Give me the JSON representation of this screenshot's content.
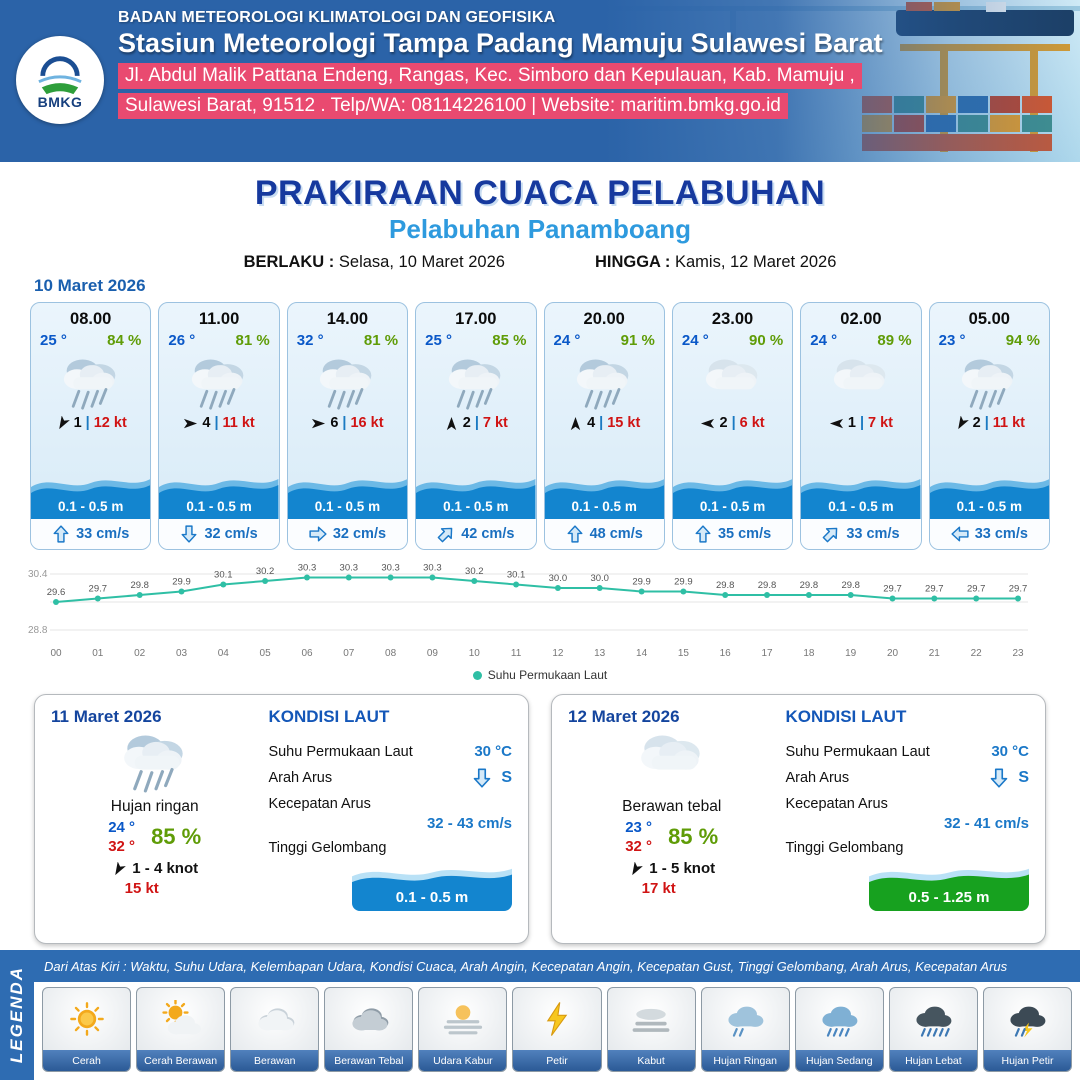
{
  "header": {
    "org": "BADAN METEOROLOGI KLIMATOLOGI DAN GEOFISIKA",
    "station": "Stasiun Meteorologi Tampa Padang Mamuju Sulawesi Barat",
    "address1": "Jl. Abdul Malik Pattana Endeng, Rangas, Kec. Simboro dan Kepulauan, Kab. Mamuju ,",
    "address2": "Sulawesi Barat, 91512 . Telp/WA: 08114226100 | Website: maritim.bmkg.go.id",
    "logo_label": "BMKG"
  },
  "title": {
    "main": "PRAKIRAAN CUACA PELABUHAN",
    "sub": "Pelabuhan Panamboang",
    "berlaku_label": "BERLAKU :",
    "berlaku_value": "Selasa, 10 Maret 2026",
    "hingga_label": "HINGGA :",
    "hingga_value": "Kamis, 12 Maret 2026"
  },
  "forecast": {
    "date": "10 Maret 2026",
    "cards": [
      {
        "time": "08.00",
        "temp": "25 °",
        "hum": "84 %",
        "icon": "rain",
        "wind_deg": 120,
        "wind_num": "1",
        "wind_speed": "12 kt",
        "wave": "0.1 - 0.5 m",
        "cur_deg": 0,
        "cur_speed": "33 cm/s"
      },
      {
        "time": "11.00",
        "temp": "26 °",
        "hum": "81 %",
        "icon": "rain",
        "wind_deg": 0,
        "wind_num": "4",
        "wind_speed": "11 kt",
        "wave": "0.1 - 0.5 m",
        "cur_deg": 180,
        "cur_speed": "32 cm/s"
      },
      {
        "time": "14.00",
        "temp": "32 °",
        "hum": "81 %",
        "icon": "rain",
        "wind_deg": 0,
        "wind_num": "6",
        "wind_speed": "16 kt",
        "wave": "0.1 - 0.5 m",
        "cur_deg": 90,
        "cur_speed": "32 cm/s"
      },
      {
        "time": "17.00",
        "temp": "25 °",
        "hum": "85 %",
        "icon": "rain",
        "wind_deg": -90,
        "wind_num": "2",
        "wind_speed": "7 kt",
        "wave": "0.1 - 0.5 m",
        "cur_deg": 45,
        "cur_speed": "42 cm/s"
      },
      {
        "time": "20.00",
        "temp": "24 °",
        "hum": "91 %",
        "icon": "rain",
        "wind_deg": -90,
        "wind_num": "4",
        "wind_speed": "15 kt",
        "wave": "0.1 - 0.5 m",
        "cur_deg": 0,
        "cur_speed": "48 cm/s"
      },
      {
        "time": "23.00",
        "temp": "24 °",
        "hum": "90 %",
        "icon": "cloud",
        "wind_deg": 180,
        "wind_num": "2",
        "wind_speed": "6 kt",
        "wave": "0.1 - 0.5 m",
        "cur_deg": 0,
        "cur_speed": "35 cm/s"
      },
      {
        "time": "02.00",
        "temp": "24 °",
        "hum": "89 %",
        "icon": "cloud",
        "wind_deg": 180,
        "wind_num": "1",
        "wind_speed": "7 kt",
        "wave": "0.1 - 0.5 m",
        "cur_deg": 45,
        "cur_speed": "33 cm/s"
      },
      {
        "time": "05.00",
        "temp": "23 °",
        "hum": "94 %",
        "icon": "rain",
        "wind_deg": 120,
        "wind_num": "2",
        "wind_speed": "11 kt",
        "wave": "0.1 - 0.5 m",
        "cur_deg": 270,
        "cur_speed": "33 cm/s"
      }
    ]
  },
  "chart_data": {
    "type": "line",
    "series_name": "Suhu Permukaan Laut",
    "x": [
      "00",
      "01",
      "02",
      "03",
      "04",
      "05",
      "06",
      "07",
      "08",
      "09",
      "10",
      "11",
      "12",
      "13",
      "14",
      "15",
      "16",
      "17",
      "18",
      "19",
      "20",
      "21",
      "22",
      "23"
    ],
    "values": [
      29.6,
      29.7,
      29.8,
      29.9,
      30.1,
      30.2,
      30.3,
      30.3,
      30.3,
      30.3,
      30.2,
      30.1,
      30.0,
      30.0,
      29.9,
      29.9,
      29.8,
      29.8,
      29.8,
      29.8,
      29.7,
      29.7,
      29.7,
      29.7
    ],
    "ylim": [
      28.8,
      30.4
    ],
    "line_color": "#2fbfa5",
    "grid": true,
    "legend_position": "bottom"
  },
  "days": [
    {
      "date": "11 Maret 2026",
      "condition": "Hujan ringan",
      "icon": "rain",
      "temp_min": "24 °",
      "temp_max": "32 °",
      "humidity": "85 %",
      "wind_deg": 120,
      "wind_range": "1  - 4 knot",
      "gust": "15 kt",
      "sea": {
        "heading": "KONDISI LAUT",
        "sst_label": "Suhu Permukaan Laut",
        "sst": "30 °C",
        "current_dir_label": "Arah Arus",
        "current_dir": "S",
        "current_dir_deg": 180,
        "current_speed_label": "Kecepatan Arus",
        "current_speed": "32  - 43 cm/s",
        "wave_label": "Tinggi Gelombang",
        "wave": "0.1 - 0.5 m",
        "wave_color": "#1385cf"
      }
    },
    {
      "date": "12 Maret 2026",
      "condition": "Berawan tebal",
      "icon": "cloud",
      "temp_min": "23 °",
      "temp_max": "32 °",
      "humidity": "85 %",
      "wind_deg": 120,
      "wind_range": "1  - 5 knot",
      "gust": "17 kt",
      "sea": {
        "heading": "KONDISI LAUT",
        "sst_label": "Suhu Permukaan Laut",
        "sst": "30 °C",
        "current_dir_label": "Arah Arus",
        "current_dir": "S",
        "current_dir_deg": 180,
        "current_speed_label": "Kecepatan Arus",
        "current_speed": "32  - 41 cm/s",
        "wave_label": "Tinggi Gelombang",
        "wave": "0.5 - 1.25 m",
        "wave_color": "#17a11f"
      }
    }
  ],
  "legend": {
    "title": "LEGENDA",
    "caption": "Dari Atas Kiri : Waktu, Suhu Udara, Kelembapan Udara, Kondisi Cuaca, Arah Angin, Kecepatan Angin, Kecepatan Gust, Tinggi Gelombang, Arah Arus, Kecepatan Arus",
    "items": [
      {
        "label": "Cerah",
        "icon": "sun"
      },
      {
        "label": "Cerah Berawan",
        "icon": "sun-cloud"
      },
      {
        "label": "Berawan",
        "icon": "cloud"
      },
      {
        "label": "Berawan Tebal",
        "icon": "cloud-thick"
      },
      {
        "label": "Udara Kabur",
        "icon": "haze"
      },
      {
        "label": "Petir",
        "icon": "lightning"
      },
      {
        "label": "Kabut",
        "icon": "fog"
      },
      {
        "label": "Hujan Ringan",
        "icon": "rain-light"
      },
      {
        "label": "Hujan Sedang",
        "icon": "rain-medium"
      },
      {
        "label": "Hujan Lebat",
        "icon": "rain-heavy"
      },
      {
        "label": "Hujan Petir",
        "icon": "rain-lightning"
      }
    ]
  }
}
